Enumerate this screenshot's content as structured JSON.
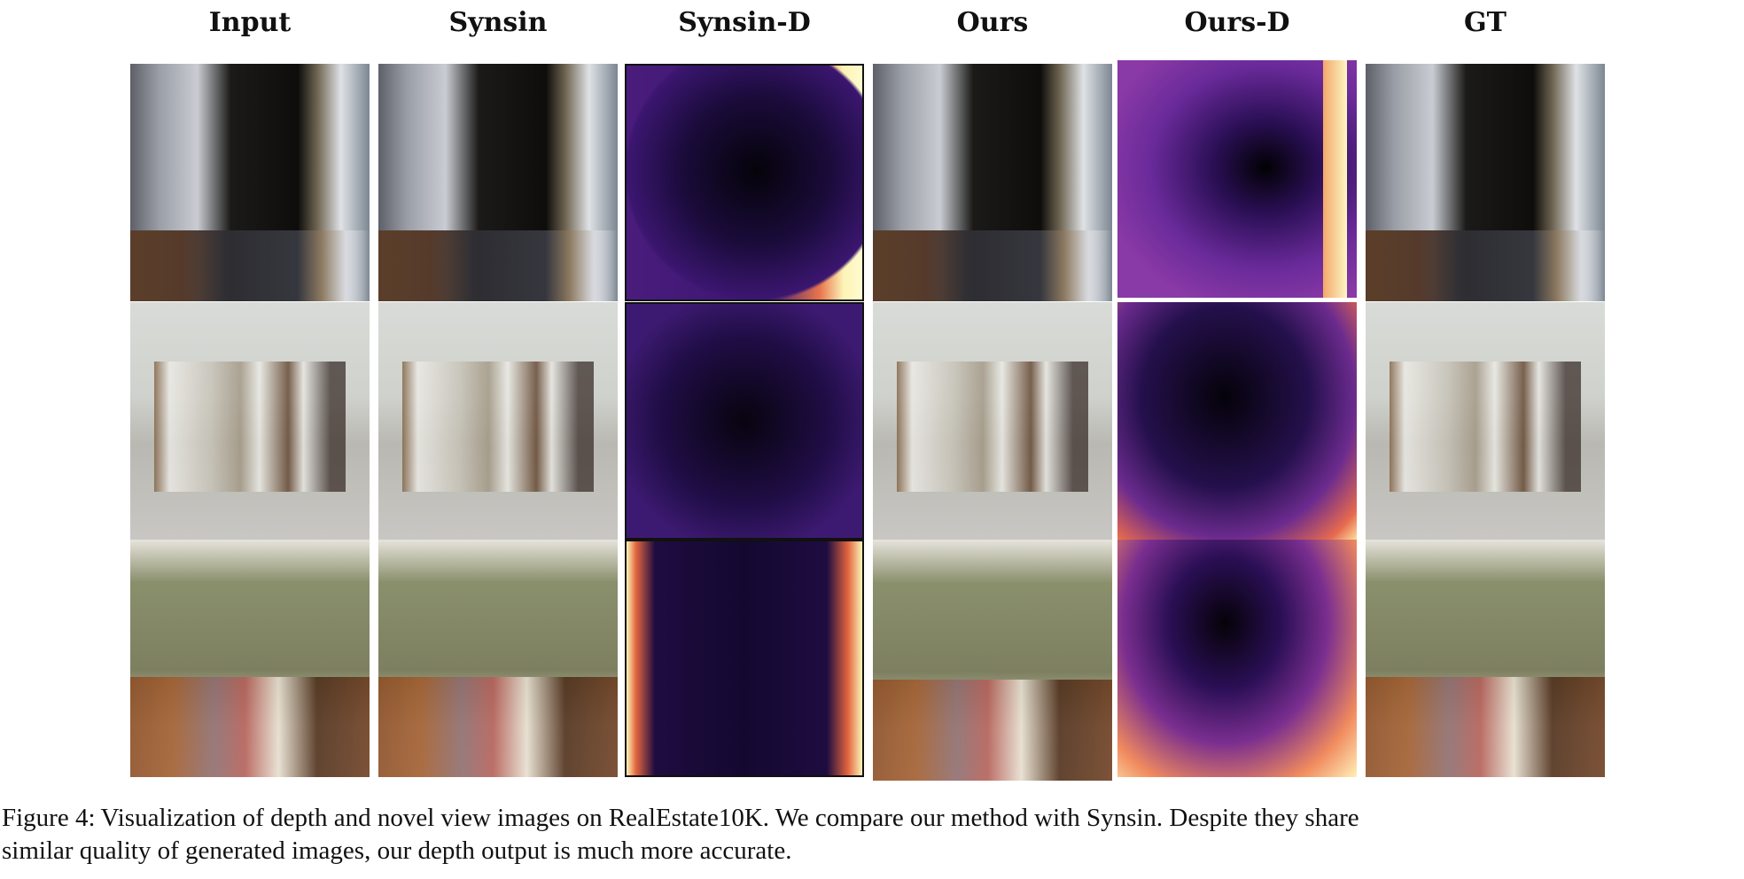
{
  "figure": {
    "columns": [
      {
        "label": "Input"
      },
      {
        "label": "Synsin"
      },
      {
        "label": "Synsin-D"
      },
      {
        "label": "Ours"
      },
      {
        "label": "Ours-D"
      },
      {
        "label": "GT"
      }
    ],
    "rows": 3,
    "depth_colormap": "magma",
    "caption_label": "Figure 4:",
    "caption_text": "Visualization of depth and novel view images on RealEstate10K. We compare our method with Synsin. Despite they share",
    "caption_text_line2": "similar quality of generated images, our depth output is much more accurate."
  }
}
